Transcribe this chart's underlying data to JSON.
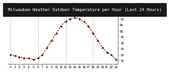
{
  "title": "Milwaukee Weather Outdoor Temperature per Hour (Last 24 Hours)",
  "hours": [
    0,
    1,
    2,
    3,
    4,
    5,
    6,
    7,
    8,
    9,
    10,
    11,
    12,
    13,
    14,
    15,
    16,
    17,
    18,
    19,
    20,
    21,
    22,
    23
  ],
  "temps": [
    20,
    19,
    18,
    17,
    17,
    16,
    17,
    20,
    26,
    32,
    38,
    44,
    48,
    50,
    51,
    50,
    48,
    44,
    38,
    32,
    26,
    22,
    20,
    16
  ],
  "line_color": "#cc0000",
  "marker_color": "#000000",
  "bg_color": "#ffffff",
  "title_bg": "#1a1a1a",
  "title_fg": "#ffffff",
  "grid_color": "#999999",
  "ylim": [
    12,
    56
  ],
  "ytick_vals": [
    15,
    20,
    25,
    30,
    35,
    40,
    45,
    50
  ],
  "ytick_labels": [
    "15",
    "20",
    "25",
    "30",
    "35",
    "40",
    "45",
    "50"
  ],
  "vgrid_hours": [
    0,
    6,
    12,
    18
  ],
  "xlabel_fontsize": 3.0,
  "ylabel_fontsize": 3.0,
  "title_fontsize": 3.8,
  "line_width": 0.7,
  "marker_size": 1.2
}
